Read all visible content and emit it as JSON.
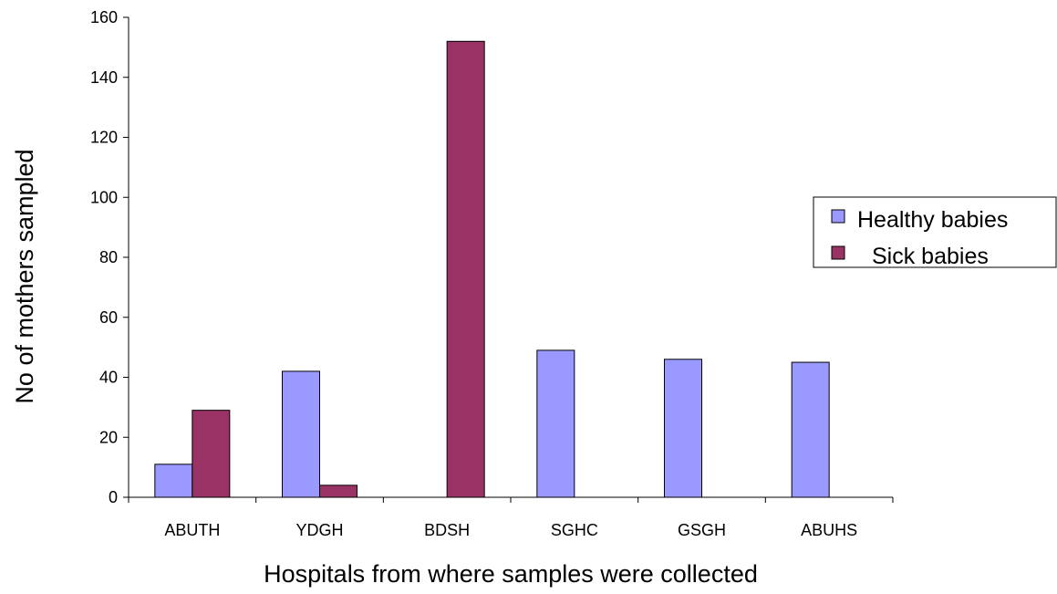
{
  "chart_data": {
    "type": "bar",
    "title": "",
    "xlabel": "Hospitals from where samples were collected",
    "ylabel": "No of mothers sampled",
    "categories": [
      "ABUTH",
      "YDGH",
      "BDSH",
      "SGHC",
      "GSGH",
      "ABUHS"
    ],
    "series": [
      {
        "name": "Healthy babies",
        "color": "#9999ff",
        "values": [
          11,
          42,
          0,
          49,
          46,
          45
        ]
      },
      {
        "name": "Sick babies",
        "color": "#993366",
        "values": [
          29,
          4,
          152,
          0,
          0,
          0
        ]
      }
    ],
    "ylim": [
      0,
      160
    ],
    "yticks": [
      0,
      20,
      40,
      60,
      80,
      100,
      120,
      140,
      160
    ],
    "grid": false,
    "legend_position": "right"
  }
}
